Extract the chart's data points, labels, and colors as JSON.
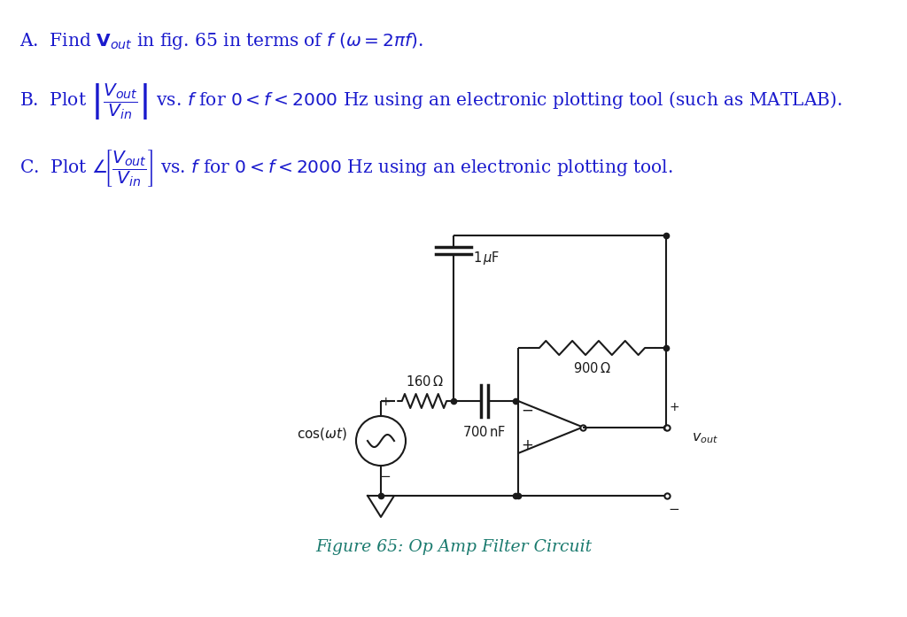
{
  "bg_color": "#ffffff",
  "text_color": "#1a1acd",
  "circuit_color": "#1a1a1a",
  "caption_color": "#1a7a6e",
  "fig_width": 10.24,
  "fig_height": 6.97,
  "caption": "Figure 65: Op Amp Filter Circuit"
}
